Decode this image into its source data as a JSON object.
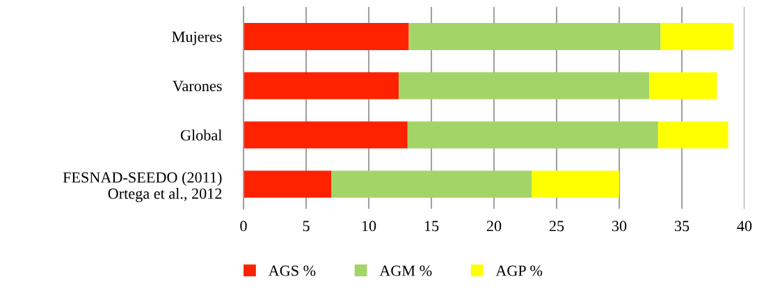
{
  "chart_data": {
    "type": "bar",
    "orientation": "horizontal",
    "stacked": true,
    "categories": [
      "Mujeres",
      "Varones",
      "Global",
      "FESNAD-SEEDO (2011)\nOrtega et al., 2012"
    ],
    "series": [
      {
        "name": "AGS %",
        "color": "#ff2200",
        "values": [
          13.2,
          12.4,
          13.1,
          7.0
        ]
      },
      {
        "name": "AGM %",
        "color": "#a3d468",
        "values": [
          20.1,
          20.0,
          20.0,
          16.0
        ]
      },
      {
        "name": "AGP %",
        "color": "#ffff00",
        "values": [
          5.8,
          5.4,
          5.6,
          7.0
        ]
      }
    ],
    "xlim": [
      0,
      40
    ],
    "xticks": [
      0,
      5,
      10,
      15,
      20,
      25,
      30,
      35,
      40
    ],
    "grid": "x",
    "legend": "bottom"
  }
}
